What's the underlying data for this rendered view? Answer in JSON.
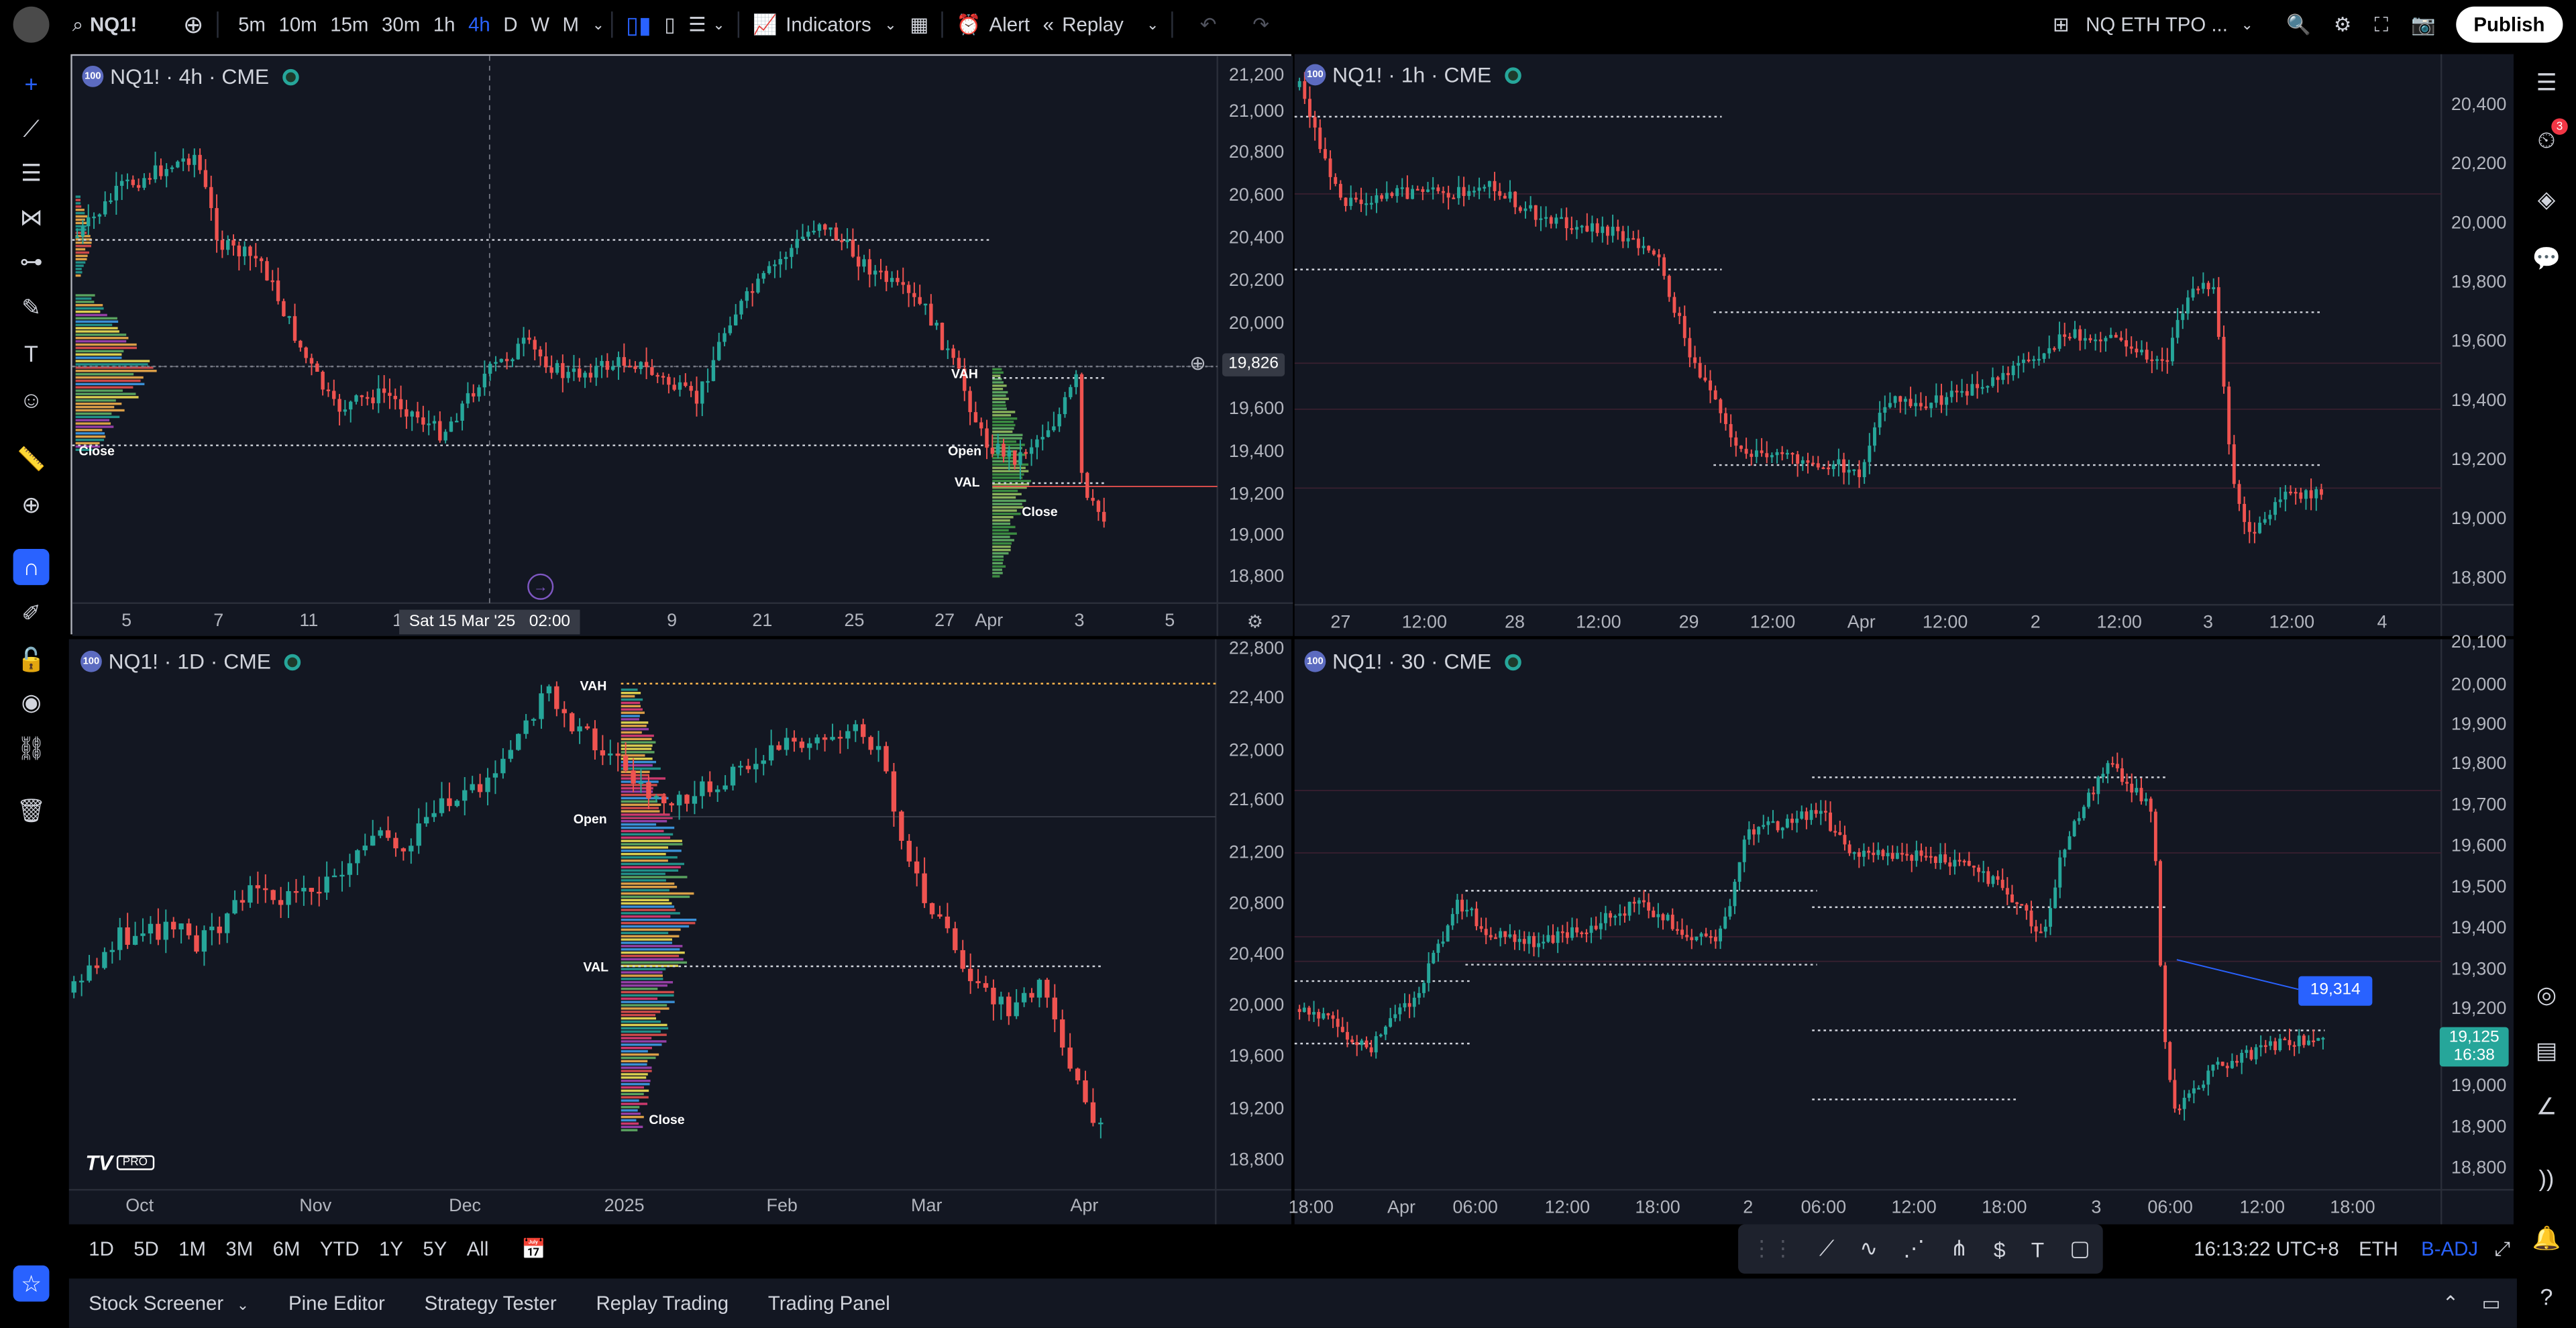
{
  "topbar": {
    "symbol": "NQ1!",
    "intervals": [
      "5m",
      "10m",
      "15m",
      "30m",
      "1h",
      "4h",
      "D",
      "W",
      "M"
    ],
    "active_interval": "4h",
    "indicators_label": "Indicators",
    "alert_label": "Alert",
    "replay_label": "Replay",
    "layout_name": "NQ ETH TPO ...",
    "publish_label": "Publish"
  },
  "panes": {
    "p4h": {
      "title": "NQ1! · 4h · CME",
      "badge": "100",
      "y_labels": [
        "21,200",
        "21,000",
        "20,800",
        "20,600",
        "20,400",
        "20,200",
        "20,000",
        "19,826",
        "19,600",
        "19,400",
        "19,200",
        "19,000",
        "18,800"
      ],
      "x_labels": [
        "5",
        "7",
        "11",
        "1",
        "9",
        "21",
        "25",
        "27",
        "Apr",
        "3",
        "5"
      ],
      "crosshair_date": "Sat 15 Mar '25",
      "crosshair_time": "02:00",
      "labels": {
        "vah": "VAH",
        "val": "VAL",
        "open": "Open",
        "close": "Close",
        "close2": "Close"
      }
    },
    "p1h": {
      "title": "NQ1! · 1h · CME",
      "badge": "100",
      "y_labels": [
        "20,400",
        "20,200",
        "20,000",
        "19,800",
        "19,600",
        "19,400",
        "19,200",
        "19,000",
        "18,800"
      ],
      "x_labels": [
        "27",
        "12:00",
        "28",
        "12:00",
        "29",
        "12:00",
        "Apr",
        "12:00",
        "2",
        "12:00",
        "3",
        "12:00",
        "4"
      ]
    },
    "p1d": {
      "title": "NQ1! · 1D · CME",
      "badge": "100",
      "y_labels": [
        "22,800",
        "22,400",
        "22,000",
        "21,600",
        "21,200",
        "20,800",
        "20,400",
        "20,000",
        "19,600",
        "19,200",
        "18,800"
      ],
      "x_labels": [
        "Oct",
        "Nov",
        "Dec",
        "2025",
        "Feb",
        "Mar",
        "Apr"
      ],
      "labels": {
        "vah": "VAH",
        "val": "VAL",
        "open": "Open",
        "close": "Close"
      },
      "logo": "PRO"
    },
    "p30": {
      "title": "NQ1! · 30 · CME",
      "badge": "100",
      "y_labels": [
        "20,100",
        "20,000",
        "19,900",
        "19,800",
        "19,700",
        "19,600",
        "19,500",
        "19,400",
        "19,300",
        "19,200",
        "19,125",
        "19,000",
        "18,900",
        "18,800"
      ],
      "x_labels": [
        "18:00",
        "Apr",
        "06:00",
        "12:00",
        "18:00",
        "2",
        "06:00",
        "12:00",
        "18:00",
        "3",
        "06:00",
        "12:00",
        "18:00"
      ],
      "line_tag": "19,314",
      "last_price": "19,125",
      "last_time": "16:38"
    }
  },
  "bottombar": {
    "ranges": [
      "1D",
      "5D",
      "1M",
      "3M",
      "6M",
      "YTD",
      "1Y",
      "5Y",
      "All"
    ],
    "clock": "16:13:22 UTC+8",
    "session": "ETH",
    "adj": "B-ADJ"
  },
  "tabs": [
    "Stock Screener",
    "Pine Editor",
    "Strategy Tester",
    "Replay Trading",
    "Trading Panel"
  ],
  "notifications": "3",
  "colors": {
    "up": "#26a69a",
    "down": "#ef5350",
    "accent": "#2962ff",
    "bg": "#131722"
  }
}
